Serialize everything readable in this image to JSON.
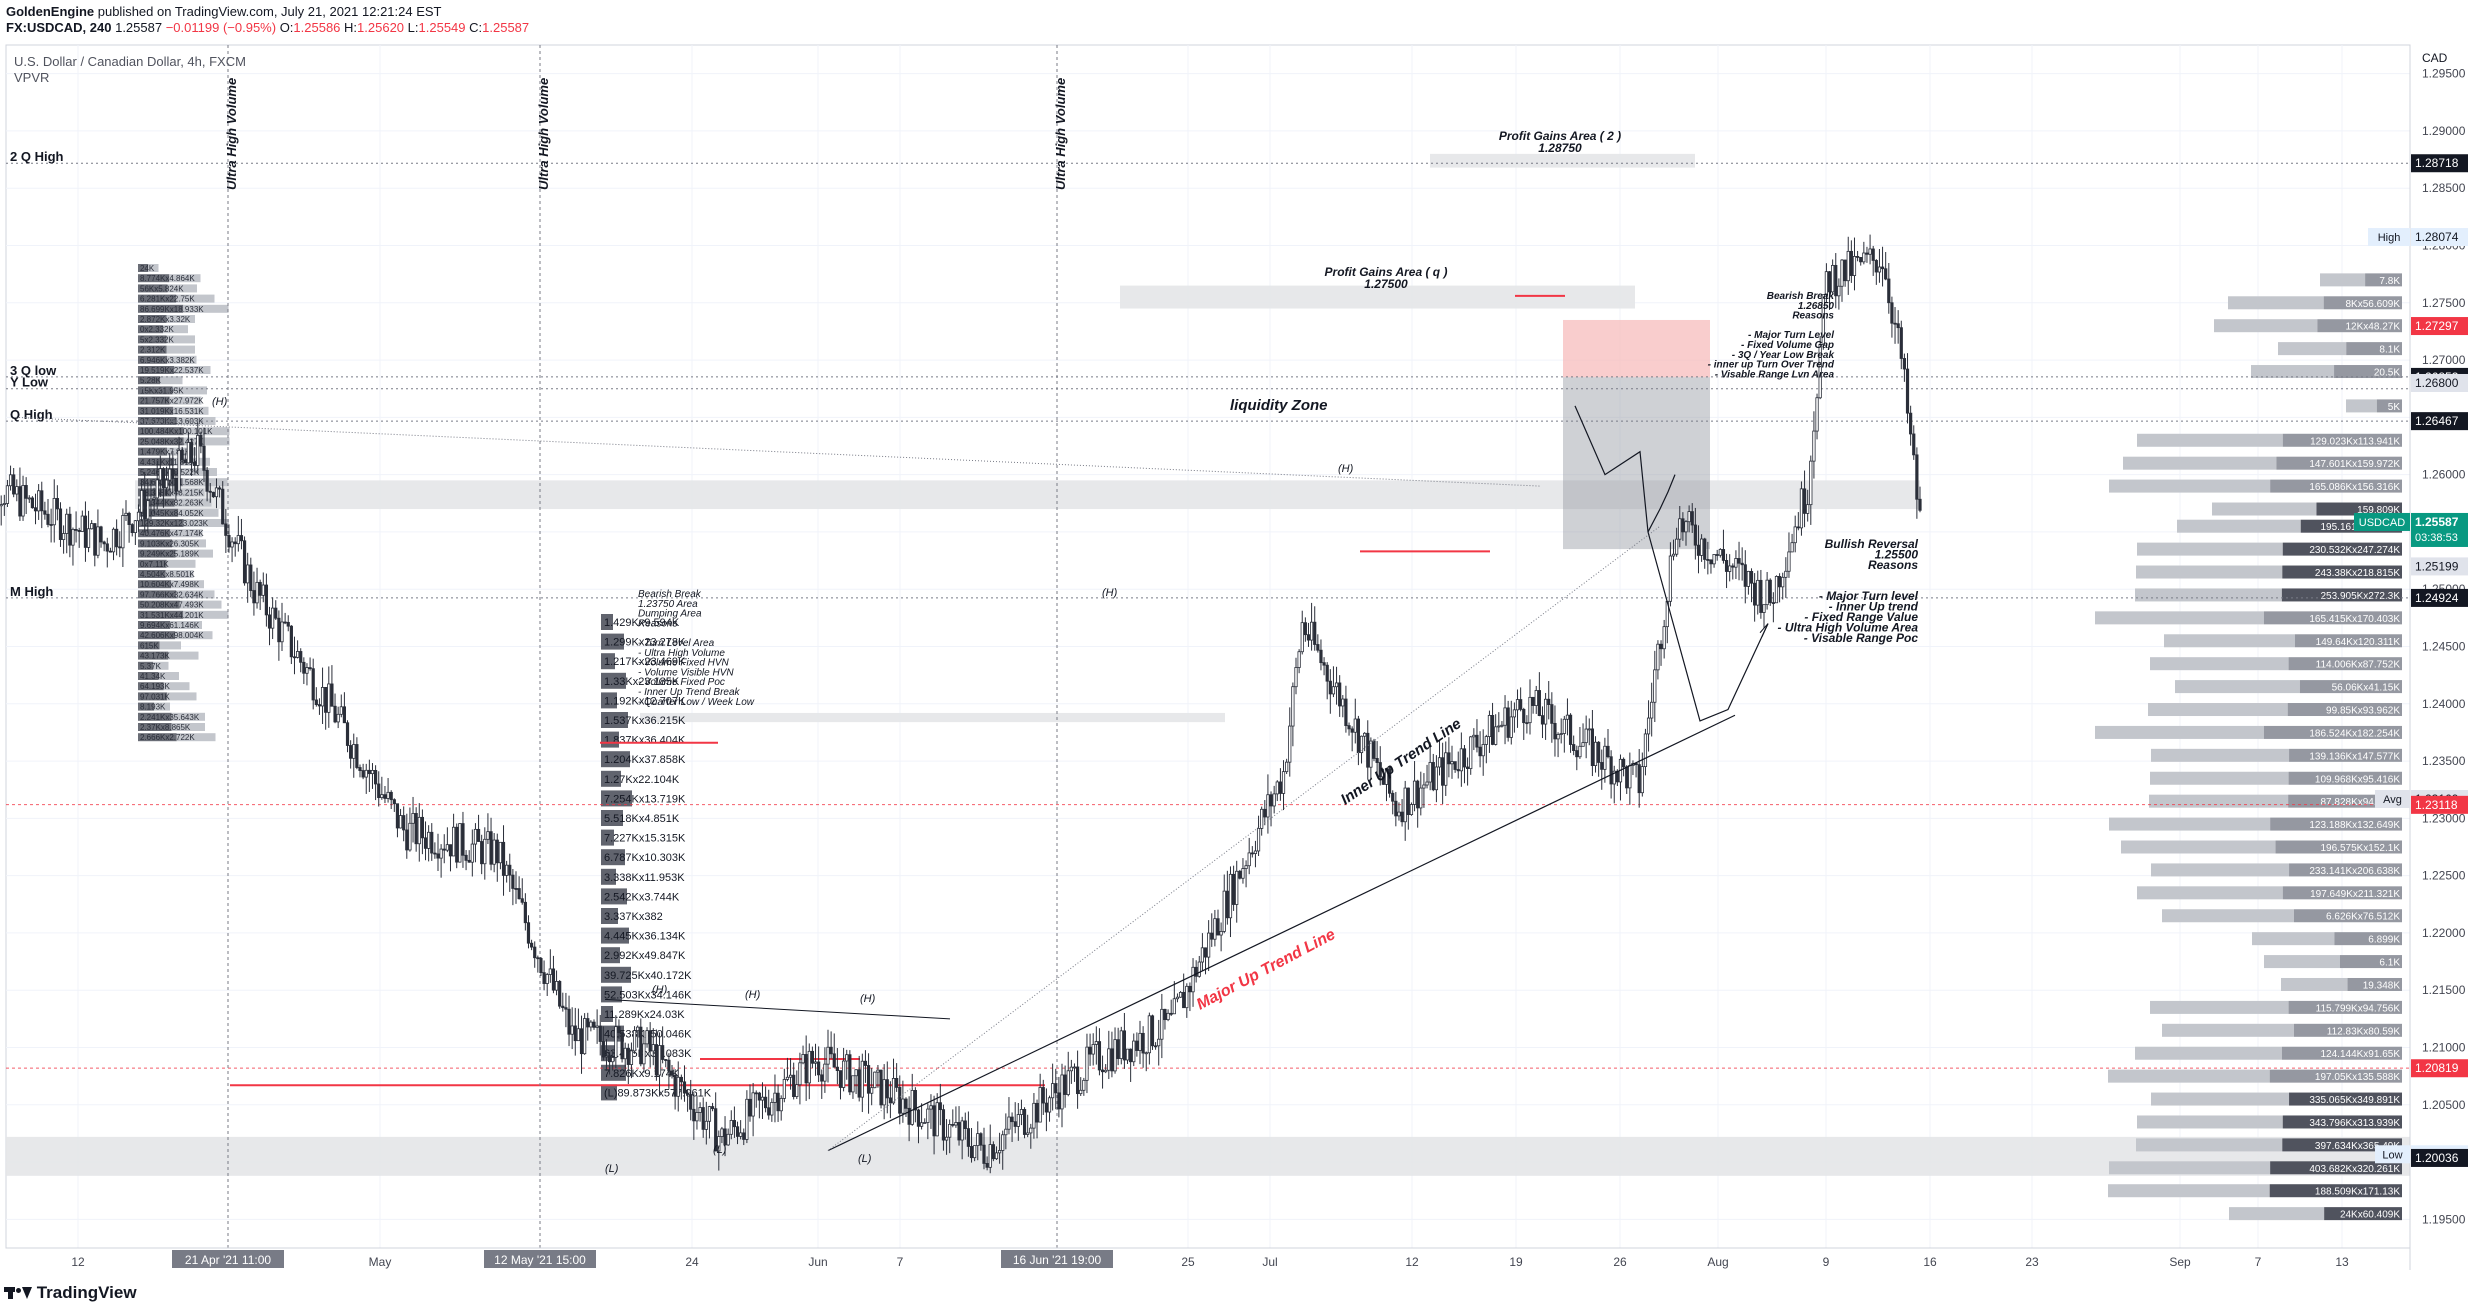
{
  "header": {
    "line1_publisher": "GoldenEngine",
    "line1_rest": " published on TradingView.com, July 21, 2021 12:21:24 EST",
    "symbol": "FX:USDCAD, 240",
    "last": "1.25587",
    "change": "−0.01199 (−0.95%)",
    "o_label": "O:",
    "o_value": "1.25586",
    "h_label": "H:",
    "h_value": "1.25620",
    "l_label": "L:",
    "l_value": "1.25549",
    "c_label": "C:",
    "c_value": "1.25587"
  },
  "legend": {
    "title": "U.S. Dollar / Canadian Dollar, 4h, FXCM",
    "indicator": "VPVR"
  },
  "currency": "CAD",
  "footer": {
    "brand": "TradingView"
  },
  "colors": {
    "candle": "#2a2e39",
    "red": "#f23645",
    "teal": "#089981",
    "profile_dark": "#50535e",
    "profile_light": "#c3c6cc",
    "zone": "#e4e5e8",
    "grid": "#f0f3fa"
  },
  "chart_data": {
    "type": "candlestick",
    "symbol": "USDCAD",
    "timeframe": "4h",
    "ylim": [
      1.1925,
      1.2975
    ],
    "y_ticks": [
      "1.29500",
      "1.29000",
      "1.28500",
      "1.28000",
      "1.27500",
      "1.27000",
      "1.26500",
      "1.26000",
      "1.25500",
      "1.25000",
      "1.24500",
      "1.24000",
      "1.23500",
      "1.23000",
      "1.22500",
      "1.22000",
      "1.21500",
      "1.21000",
      "1.20500",
      "1.20000",
      "1.19500"
    ],
    "x_ticks": [
      "12",
      "May",
      "24",
      "Jun",
      "7",
      "25",
      "Jul",
      "12",
      "19",
      "26",
      "Aug",
      "9",
      "16",
      "23",
      "Sep",
      "7",
      "13"
    ],
    "price_path": [
      {
        "date": "2021-04-08",
        "close": 1.26
      },
      {
        "date": "2021-04-15",
        "close": 1.254
      },
      {
        "date": "2021-04-20",
        "close": 1.262
      },
      {
        "date": "2021-04-23",
        "close": 1.25
      },
      {
        "date": "2021-04-27",
        "close": 1.24
      },
      {
        "date": "2021-05-01",
        "close": 1.229
      },
      {
        "date": "2021-05-06",
        "close": 1.227
      },
      {
        "date": "2021-05-10",
        "close": 1.211
      },
      {
        "date": "2021-05-14",
        "close": 1.21
      },
      {
        "date": "2021-05-18",
        "close": 1.202
      },
      {
        "date": "2021-05-23",
        "close": 1.209
      },
      {
        "date": "2021-05-27",
        "close": 1.206
      },
      {
        "date": "2021-06-01",
        "close": 1.201
      },
      {
        "date": "2021-06-07",
        "close": 1.209
      },
      {
        "date": "2021-06-11",
        "close": 1.212
      },
      {
        "date": "2021-06-17",
        "close": 1.234
      },
      {
        "date": "2021-06-18",
        "close": 1.247
      },
      {
        "date": "2021-06-23",
        "close": 1.231
      },
      {
        "date": "2021-06-30",
        "close": 1.24
      },
      {
        "date": "2021-07-06",
        "close": 1.233
      },
      {
        "date": "2021-07-08",
        "close": 1.256
      },
      {
        "date": "2021-07-13",
        "close": 1.249
      },
      {
        "date": "2021-07-15",
        "close": 1.259
      },
      {
        "date": "2021-07-16",
        "close": 1.277
      },
      {
        "date": "2021-07-19",
        "close": 1.279
      },
      {
        "date": "2021-07-20",
        "close": 1.27
      },
      {
        "date": "2021-07-21",
        "close": 1.25587
      }
    ],
    "price_labels": [
      {
        "text": "High",
        "value": "1.28074",
        "kind": "high"
      },
      {
        "text": "",
        "value": "1.28718",
        "kind": "line"
      },
      {
        "text": "",
        "value": "1.27297",
        "kind": "red"
      },
      {
        "text": "",
        "value": "1.26853",
        "kind": "dark"
      },
      {
        "text": "",
        "value": "1.26800",
        "kind": "light"
      },
      {
        "text": "",
        "value": "1.26467",
        "kind": "line"
      },
      {
        "text": "USDCAD",
        "value": "1.25587",
        "kind": "last",
        "countdown": "03:38:53"
      },
      {
        "text": "",
        "value": "1.25199",
        "kind": "light"
      },
      {
        "text": "",
        "value": "1.24924",
        "kind": "line"
      },
      {
        "text": "Avg",
        "value": "1.23169",
        "kind": "avg"
      },
      {
        "text": "",
        "value": "1.23118",
        "kind": "red"
      },
      {
        "text": "",
        "value": "1.20819",
        "kind": "red"
      },
      {
        "text": "Low",
        "value": "1.20068",
        "kind": "low"
      },
      {
        "text": "",
        "value": "1.20036",
        "kind": "line"
      }
    ],
    "levels": [
      {
        "label": "2 Q High",
        "value": 1.28718
      },
      {
        "label": "3 Q low",
        "value": 1.26853
      },
      {
        "label": "Y Low",
        "value": 1.2675
      },
      {
        "label": "Q High",
        "value": 1.26467
      },
      {
        "label": "M High",
        "value": 1.24924
      }
    ],
    "vertical_markers": [
      {
        "label": "Ultra High Volume",
        "date_label": "21 Apr '21",
        "time": "11:00"
      },
      {
        "label": "Ultra High Volume",
        "date_label": "12 May '21",
        "time": "15:00"
      },
      {
        "label": "Ultra High Volume",
        "date_label": "16 Jun '21",
        "time": "19:00"
      }
    ],
    "annotations": {
      "profit1": {
        "title": "Profit Gains Area  ( q )",
        "price": "1.27500"
      },
      "profit2": {
        "title": "Profit Gains Area  ( 2 )",
        "price": "1.28750"
      },
      "liquidity": "liquidity Zone",
      "inner_trend": "Inner Up Trend Line",
      "major_trend": "Major Up Trend Line",
      "bearish_right": [
        "Bearish Break",
        "1.26850",
        "Reasons",
        "",
        "- Major Turn Level",
        "- Fixed Volume Gap",
        "- 3Q / Year Low Break",
        "- inner up Turn Over Trend",
        "- Visable Range Lvn Area"
      ],
      "bearish_left": [
        "Bearish Break",
        "1.23750 Area",
        "Dumping Area",
        "Reasons",
        "",
        "- Turn Level Area",
        "- Ultra High Volume",
        "- Volume Fixed HVN",
        "- Volume Visible HVN",
        "- Volume Fixed Poc",
        "- Inner Up Trend Break",
        "- Quarter Low / Week Low"
      ],
      "bullish": [
        "Bullish Reversal",
        "1.25500",
        "Reasons",
        "",
        "- Major Turn level",
        "- Inner Up trend",
        "- Fixed Range Value",
        "- Ultra High Volume Area",
        "- Visable Range Poc"
      ],
      "swing_labels": [
        "(H)",
        "(H)",
        "(H)",
        "(H)",
        "(H)",
        "(H)",
        "(L)",
        "(L)",
        "(L)"
      ]
    },
    "volume_profile_right": [
      {
        "price": 1.277,
        "label": "7.8K"
      },
      {
        "price": 1.275,
        "label": "8Kx56.609K"
      },
      {
        "price": 1.273,
        "label": "12Kx48.27K"
      },
      {
        "price": 1.271,
        "label": "8.1K"
      },
      {
        "price": 1.269,
        "label": "20.5K"
      },
      {
        "price": 1.266,
        "label": "5K"
      },
      {
        "price": 1.263,
        "label": "129.023Kx113.941K"
      },
      {
        "price": 1.261,
        "label": "147.601Kx159.972K"
      },
      {
        "price": 1.259,
        "label": "165.086Kx156.316K"
      },
      {
        "price": 1.257,
        "label": "159.809K"
      },
      {
        "price": 1.2555,
        "label": "195.161Kx216.9K"
      },
      {
        "price": 1.2535,
        "label": "230.532Kx247.274K"
      },
      {
        "price": 1.2515,
        "label": "243.38Kx218.815K"
      },
      {
        "price": 1.2495,
        "label": "253.905Kx272.3K"
      },
      {
        "price": 1.2475,
        "label": "165.415Kx170.403K"
      },
      {
        "price": 1.2455,
        "label": "149.64Kx120.311K"
      },
      {
        "price": 1.2435,
        "label": "114.006Kx87.752K"
      },
      {
        "price": 1.2415,
        "label": "56.06Kx41.15K"
      },
      {
        "price": 1.2395,
        "label": "99.85Kx93.962K"
      },
      {
        "price": 1.2375,
        "label": "186.524Kx182.254K"
      },
      {
        "price": 1.2355,
        "label": "139.136Kx147.577K"
      },
      {
        "price": 1.2335,
        "label": "109.968Kx95.416K"
      },
      {
        "price": 1.2315,
        "label": "87.828Kx94.768K"
      },
      {
        "price": 1.2295,
        "label": "123.188Kx132.649K"
      },
      {
        "price": 1.2275,
        "label": "196.575Kx152.1K"
      },
      {
        "price": 1.2255,
        "label": "233.141Kx206.638K"
      },
      {
        "price": 1.2235,
        "label": "197.649Kx211.321K"
      },
      {
        "price": 1.2215,
        "label": "6.626Kx76.512K"
      },
      {
        "price": 1.2195,
        "label": "6.899K"
      },
      {
        "price": 1.2175,
        "label": "6.1K"
      },
      {
        "price": 1.2155,
        "label": "19.348K"
      },
      {
        "price": 1.2135,
        "label": "115.799Kx94.756K"
      },
      {
        "price": 1.2115,
        "label": "112.83Kx80.59K"
      },
      {
        "price": 1.2095,
        "label": "124.144Kx91.65K"
      },
      {
        "price": 1.2075,
        "label": "197.05Kx135.588K"
      },
      {
        "price": 1.2055,
        "label": "335.065Kx349.891K"
      },
      {
        "price": 1.2035,
        "label": "343.796Kx313.939K"
      },
      {
        "price": 1.2015,
        "label": "397.634Kx365.49K"
      },
      {
        "price": 1.1995,
        "label": "403.682Kx320.261K"
      },
      {
        "price": 1.1975,
        "label": "188.509Kx171.13K"
      },
      {
        "price": 1.1955,
        "label": "24Kx60.409K"
      }
    ],
    "volume_profile_left": [
      "24K",
      "8.774Kx4.864K",
      "56Kx5.824K",
      "6.281Kx22.75K",
      "86.699Kx18.933K",
      "2.872Kx3.32K",
      "0x2.332K",
      "5x2.332K",
      "2.312K",
      "6.946Kx3.382K",
      "19.519Kx22.537K",
      "5.28K",
      "15Kx31.95K",
      "21.757Kx27.972K",
      "31.019Kx16.531K",
      "37.673Kx13.603K",
      "100.484Kx100.101K",
      "25.048Kx32.427K",
      "1.479Kx7.81K",
      "4.431Kx11.819K",
      "5.246Kx10.522K",
      "34.683Kx21.568K",
      "38.368Kx43.215K",
      "98.344Kx82.263K",
      "95.045Kx84.052K",
      "129.32Kx123.023K",
      "40.476Kx47.174K",
      "9.103Kx26.305K",
      "9.249Kx25.189K",
      "0x7.11K",
      "4.504Kx8.501K",
      "10.604Kx7.498K",
      "97.766Kx32.634K",
      "50.208Kx47.493K",
      "31.531Kx44.201K",
      "9.694Kx61.146K",
      "42.606Kx98.004K",
      "615K",
      "43.173K",
      "5.37K",
      "41.34K",
      "64.193K",
      "97.031K",
      "8.193K",
      "2.241Kx35.643K",
      "2.37Kx8.865K",
      "2.666Kx2.722K"
    ],
    "volume_profile_mid": [
      "1.429Kx9.594K",
      "1.299Kx23.278K",
      "1.217Kx23.469K",
      "1.33Kx23.185K",
      "1.192Kx12.707K",
      "1.537Kx36.215K",
      "1.837Kx36.404K",
      "1.204Kx37.858K",
      "1.27Kx22.104K",
      "7.254Kx13.719K",
      "5.518Kx4.851K",
      "7.227Kx15.315K",
      "6.787Kx10.303K",
      "3.338Kx11.953K",
      "2.542Kx3.744K",
      "3.337Kx382",
      "4.445Kx36.134K",
      "2.992Kx49.847K",
      "39.725Kx40.172K",
      "52.503Kx34.146K",
      "11.289Kx24.03K",
      "40.538Kx50.046K",
      "63.475Kx33.083K",
      "7.826Kx9.174K",
      "(L)89.873Kx577.961K"
    ]
  }
}
